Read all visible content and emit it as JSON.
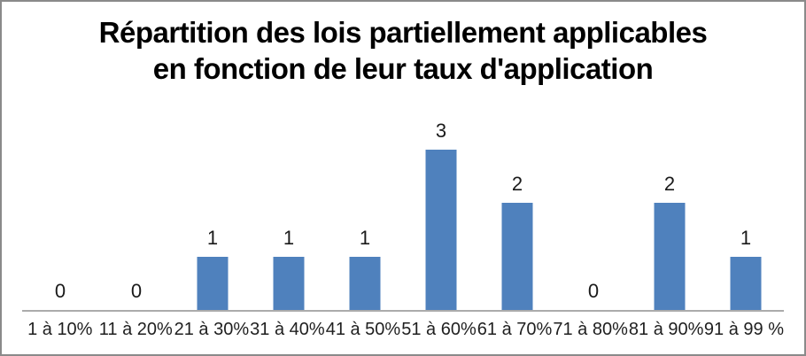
{
  "window": {
    "background_color": "#FFFFFF",
    "border_color": "#8A8A8A"
  },
  "chart_data": {
    "type": "bar",
    "title": "Répartition des lois partiellement applicables\nen fonction de leur taux d'application",
    "title_lines": {
      "line1": "Répartition des lois partiellement applicables",
      "line2": "en fonction de leur taux d'application"
    },
    "categories": [
      "1 à 10%",
      "11 à 20%",
      "21 à 30%",
      "31 à 40%",
      "41 à 50%",
      "51 à 60%",
      "61 à 70%",
      "71 à 80%",
      "81 à 90%",
      "91 à 99 %"
    ],
    "values": [
      0,
      0,
      1,
      1,
      1,
      3,
      2,
      0,
      2,
      1
    ],
    "data_labels_visible": true,
    "xlabel": "",
    "ylabel": "",
    "ylim": [
      0,
      3
    ],
    "grid": false,
    "legend_position": "none",
    "colors": {
      "bar_fill": "#4F81BD",
      "axis_line": "#ABABAB",
      "title_text": "#000000",
      "label_text": "#1F1F1F"
    }
  }
}
